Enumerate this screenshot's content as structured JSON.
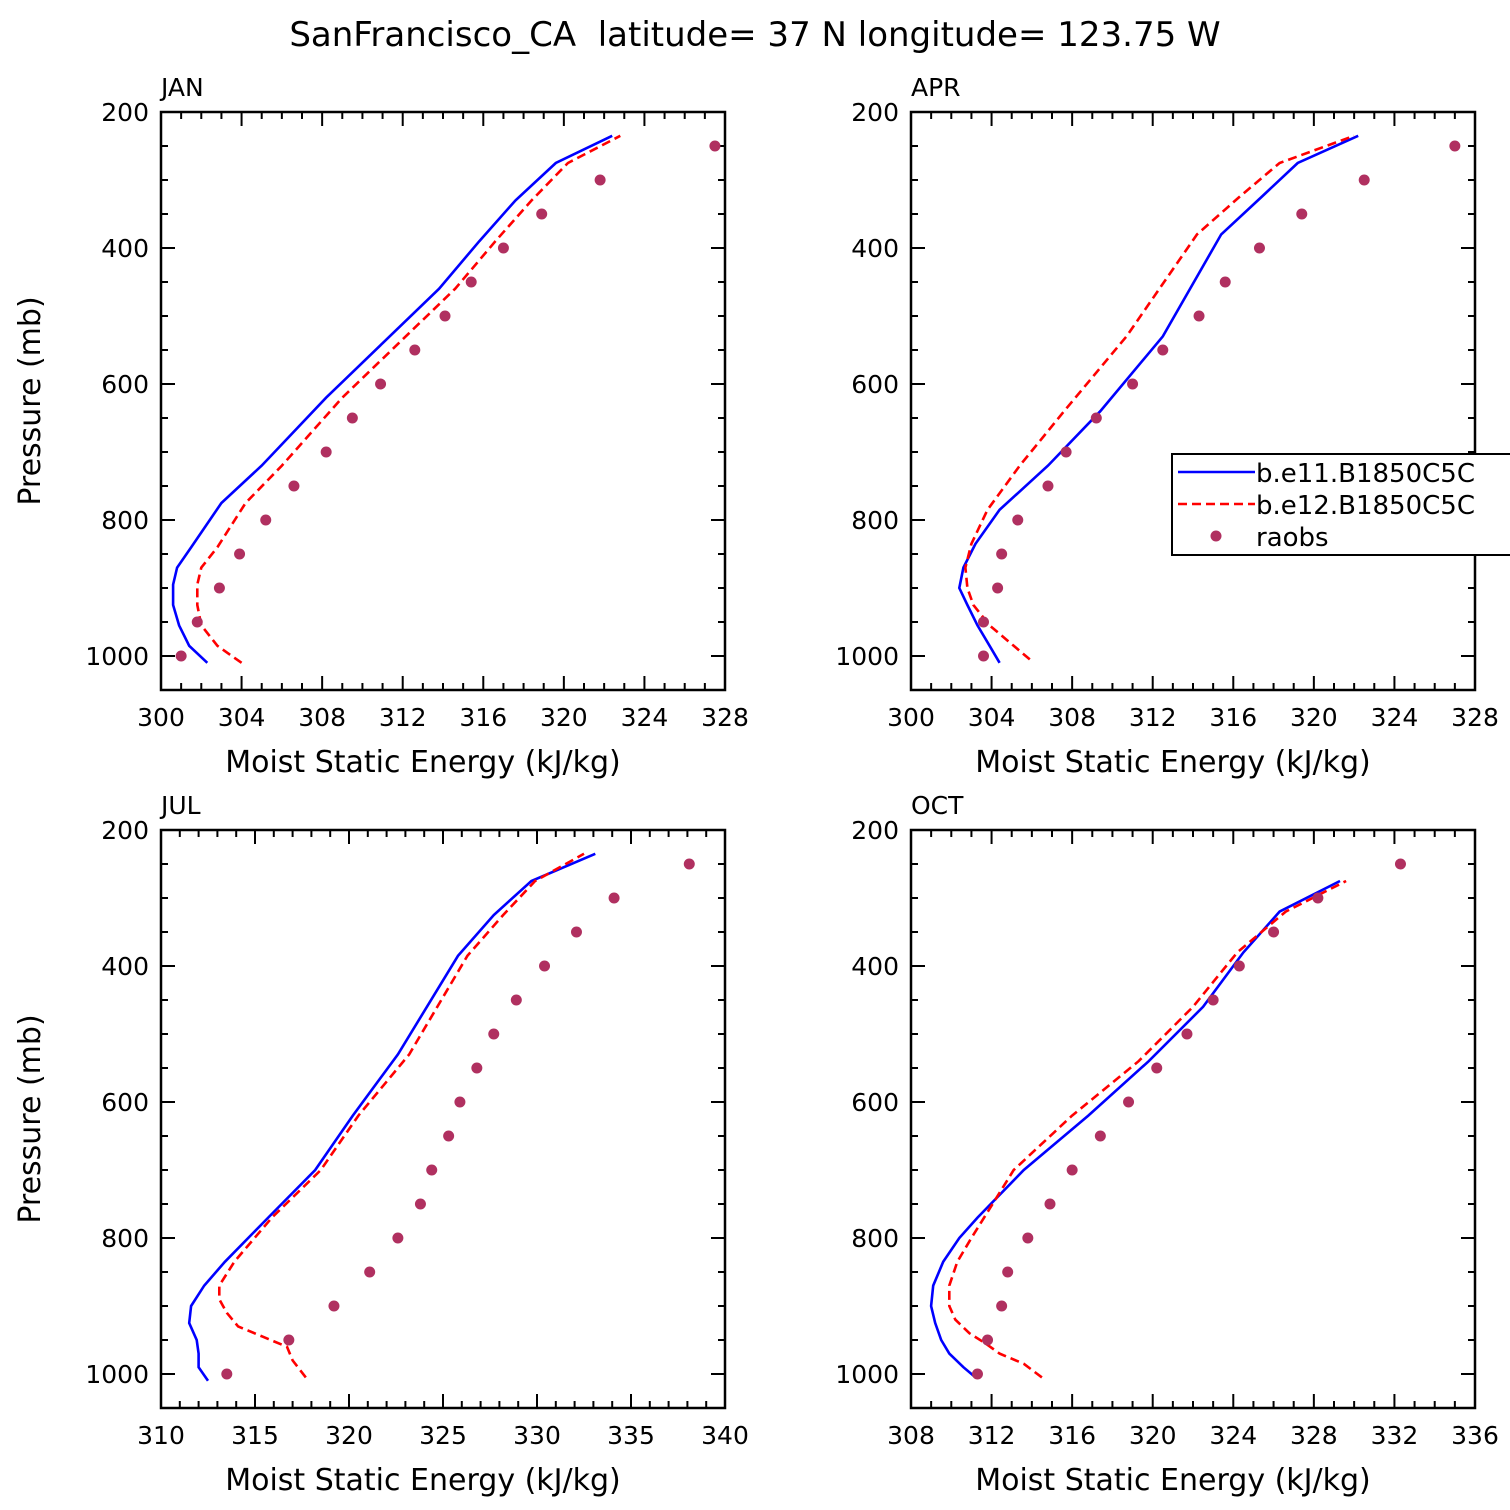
{
  "figure": {
    "title": "SanFrancisco_CA  latitude= 37 N longitude= 123.75 W"
  },
  "legend": {
    "entries": [
      {
        "label": "b.e11.B1850C5C",
        "color": "#0000ff",
        "style": "solid"
      },
      {
        "label": "b.e12.B1850C5C",
        "color": "#ff0000",
        "style": "dashed"
      },
      {
        "label": "raobs",
        "color": "#b03060",
        "style": "marker"
      }
    ]
  },
  "chart_data": [
    {
      "type": "line",
      "panel": "JAN",
      "xlabel": "Moist Static Energy (kJ/kg)",
      "ylabel": "Pressure (mb)",
      "xlim": [
        300,
        328
      ],
      "ylim": [
        1000,
        200
      ],
      "xticks": [
        "300",
        "304",
        "308",
        "312",
        "316",
        "320",
        "324",
        "328"
      ],
      "yticks": [
        "200",
        "400",
        "600",
        "800",
        "1000"
      ],
      "series": [
        {
          "name": "b.e11.B1850C5C",
          "x": [
            302.3,
            301.4,
            300.9,
            300.6,
            300.6,
            300.8,
            301.5,
            303.0,
            305.0,
            308.2,
            311.0,
            313.8,
            315.8,
            317.6,
            319.6,
            322.4
          ],
          "y": [
            1010,
            985,
            955,
            925,
            895,
            870,
            840,
            775,
            720,
            620,
            540,
            460,
            390,
            330,
            275,
            235
          ]
        },
        {
          "name": "b.e12.B1850C5C",
          "x": [
            304.0,
            302.8,
            302.0,
            301.8,
            301.8,
            302.0,
            302.8,
            304.2,
            306.0,
            309.0,
            311.8,
            314.6,
            316.6,
            318.4,
            320.2,
            322.8
          ],
          "y": [
            1010,
            985,
            955,
            925,
            895,
            870,
            840,
            775,
            720,
            620,
            540,
            460,
            390,
            330,
            275,
            235
          ]
        },
        {
          "name": "raobs",
          "x": [
            301.0,
            301.8,
            302.9,
            303.9,
            305.2,
            306.6,
            308.2,
            309.5,
            310.9,
            312.6,
            314.1,
            315.4,
            317.0,
            318.9,
            321.8,
            327.5
          ],
          "y": [
            1000,
            950,
            900,
            850,
            800,
            750,
            700,
            650,
            600,
            550,
            500,
            450,
            400,
            350,
            300,
            250
          ]
        }
      ]
    },
    {
      "type": "line",
      "panel": "APR",
      "xlabel": "Moist Static Energy (kJ/kg)",
      "ylabel": "",
      "xlim": [
        300,
        328
      ],
      "ylim": [
        1000,
        200
      ],
      "xticks": [
        "300",
        "304",
        "308",
        "312",
        "316",
        "320",
        "324",
        "328"
      ],
      "yticks": [
        "200",
        "400",
        "600",
        "800",
        "1000"
      ],
      "series": [
        {
          "name": "b.e11.B1850C5C",
          "x": [
            304.4,
            303.9,
            303.3,
            302.8,
            302.4,
            302.6,
            303.2,
            304.4,
            306.8,
            309.4,
            312.5,
            315.4,
            317.4,
            319.2,
            322.2
          ],
          "y": [
            1010,
            985,
            955,
            925,
            900,
            870,
            835,
            785,
            720,
            640,
            530,
            380,
            325,
            275,
            235
          ]
        },
        {
          "name": "b.e12.B1850C5C",
          "x": [
            305.9,
            305.1,
            303.9,
            303.1,
            302.8,
            302.7,
            303.0,
            303.8,
            305.4,
            307.6,
            310.7,
            314.2,
            316.3,
            318.3,
            322.0
          ],
          "y": [
            1005,
            985,
            955,
            925,
            900,
            870,
            835,
            785,
            720,
            640,
            530,
            380,
            325,
            275,
            235
          ]
        },
        {
          "name": "raobs",
          "x": [
            303.6,
            303.6,
            304.3,
            304.5,
            305.3,
            306.8,
            307.7,
            309.2,
            311.0,
            312.5,
            314.3,
            315.6,
            317.3,
            319.4,
            322.5,
            327.0
          ],
          "y": [
            1000,
            950,
            900,
            850,
            800,
            750,
            700,
            650,
            600,
            550,
            500,
            450,
            400,
            350,
            300,
            250
          ]
        }
      ]
    },
    {
      "type": "line",
      "panel": "JUL",
      "xlabel": "Moist Static Energy (kJ/kg)",
      "ylabel": "Pressure (mb)",
      "xlim": [
        310,
        340
      ],
      "ylim": [
        1000,
        200
      ],
      "xticks": [
        "310",
        "315",
        "320",
        "325",
        "330",
        "335",
        "340"
      ],
      "yticks": [
        "200",
        "400",
        "600",
        "800",
        "1000"
      ],
      "series": [
        {
          "name": "b.e11.B1850C5C",
          "x": [
            312.5,
            312.0,
            312.0,
            311.9,
            311.5,
            311.6,
            312.3,
            313.4,
            315.7,
            318.2,
            320.2,
            322.6,
            325.8,
            327.7,
            329.7,
            333.1
          ],
          "y": [
            1010,
            990,
            970,
            950,
            925,
            900,
            870,
            835,
            770,
            700,
            620,
            530,
            385,
            325,
            275,
            235
          ]
        },
        {
          "name": "b.e12.B1850C5C",
          "x": [
            317.7,
            317.0,
            316.7,
            315.4,
            314.1,
            313.5,
            313.1,
            313.1,
            313.9,
            315.9,
            318.5,
            320.5,
            323.2,
            326.3,
            328.2,
            329.9,
            332.5
          ],
          "y": [
            1005,
            980,
            960,
            945,
            930,
            910,
            890,
            870,
            835,
            770,
            700,
            620,
            530,
            385,
            325,
            275,
            235
          ]
        },
        {
          "name": "raobs",
          "x": [
            313.5,
            316.8,
            319.2,
            321.1,
            322.6,
            323.8,
            324.4,
            325.3,
            325.9,
            326.8,
            327.7,
            328.9,
            330.4,
            332.1,
            334.1,
            338.1
          ],
          "y": [
            1000,
            950,
            900,
            850,
            800,
            750,
            700,
            650,
            600,
            550,
            500,
            450,
            400,
            350,
            300,
            250
          ]
        }
      ]
    },
    {
      "type": "line",
      "panel": "OCT",
      "xlabel": "Moist Static Energy (kJ/kg)",
      "ylabel": "",
      "xlim": [
        308,
        336
      ],
      "ylim": [
        1000,
        200
      ],
      "xticks": [
        "308",
        "312",
        "316",
        "320",
        "324",
        "328",
        "332",
        "336"
      ],
      "yticks": [
        "200",
        "400",
        "600",
        "800",
        "1000"
      ],
      "series": [
        {
          "name": "b.e11.B1850C5C",
          "x": [
            311.2,
            310.6,
            309.9,
            309.5,
            309.2,
            309.0,
            309.1,
            309.6,
            310.4,
            311.3,
            313.6,
            316.8,
            319.8,
            322.5,
            324.5,
            326.3,
            329.3
          ],
          "y": [
            1005,
            990,
            970,
            950,
            925,
            900,
            870,
            835,
            800,
            770,
            700,
            620,
            540,
            460,
            380,
            320,
            275
          ]
        },
        {
          "name": "b.e12.B1850C5C",
          "x": [
            314.5,
            313.6,
            312.4,
            311.7,
            310.9,
            310.2,
            309.9,
            309.9,
            310.3,
            311.0,
            313.1,
            316.0,
            319.3,
            322.0,
            324.2,
            326.6,
            329.6
          ],
          "y": [
            1005,
            985,
            970,
            955,
            940,
            920,
            900,
            870,
            835,
            800,
            700,
            620,
            540,
            460,
            380,
            320,
            275
          ]
        },
        {
          "name": "raobs",
          "x": [
            311.3,
            311.8,
            312.5,
            312.8,
            313.8,
            314.9,
            316.0,
            317.4,
            318.8,
            320.2,
            321.7,
            323.0,
            324.3,
            326.0,
            328.2,
            332.3
          ],
          "y": [
            1000,
            950,
            900,
            850,
            800,
            750,
            700,
            650,
            600,
            550,
            500,
            450,
            400,
            350,
            300,
            250
          ]
        }
      ]
    }
  ]
}
